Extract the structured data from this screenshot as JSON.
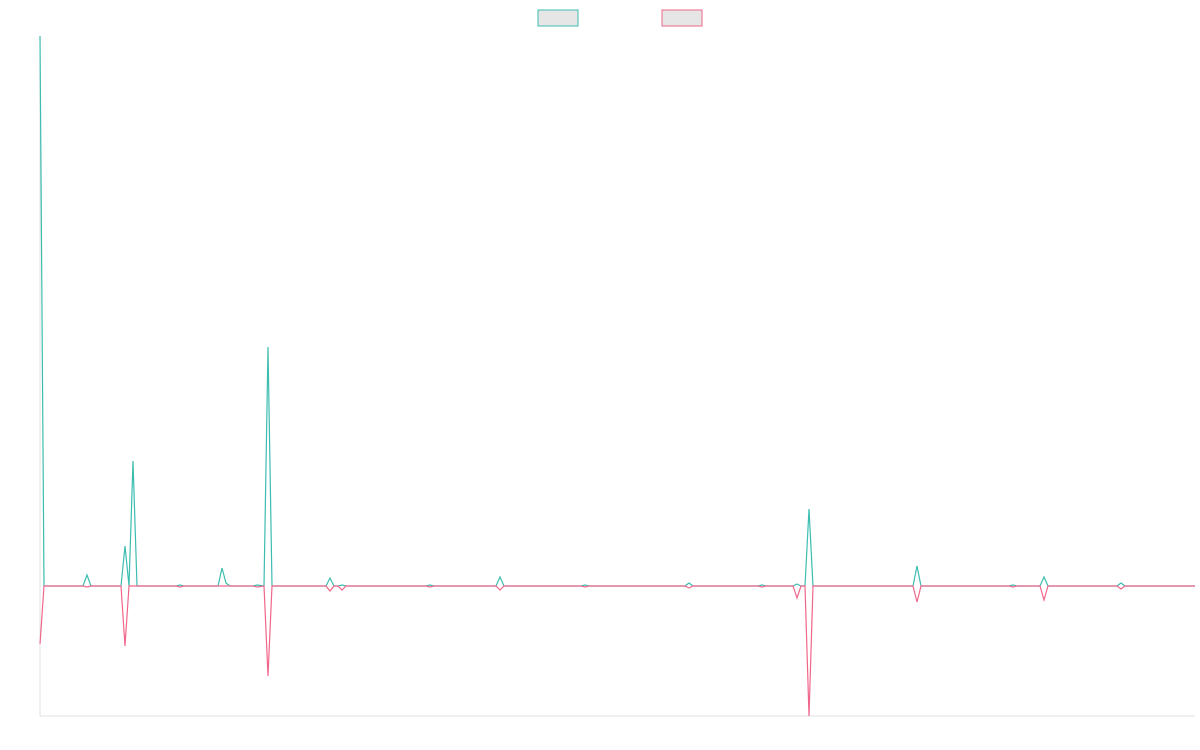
{
  "chart_data": {
    "type": "line",
    "legend": "top",
    "x": [
      0,
      4,
      43,
      47,
      51,
      81,
      85,
      89,
      93,
      97,
      136,
      140,
      144,
      178,
      182,
      186,
      190,
      213,
      217,
      224,
      228,
      232,
      286,
      290,
      294,
      298,
      302,
      306,
      386,
      390,
      394,
      456,
      460,
      464,
      541,
      545,
      549,
      645,
      649,
      653,
      718,
      722,
      726,
      753,
      757,
      761,
      765,
      769,
      773,
      873,
      877,
      881,
      969,
      973,
      977,
      1000,
      1004,
      1008,
      1077,
      1081,
      1085,
      1155
    ],
    "xlim": [
      0,
      1155
    ],
    "ylim": [
      -130,
      550
    ],
    "series": [
      {
        "color": "#3dbdb0",
        "values": [
          550,
          0,
          0,
          11,
          0,
          0,
          40,
          0,
          125,
          0,
          0,
          1,
          0,
          0,
          18,
          3,
          0,
          0,
          1,
          0,
          239,
          0,
          0,
          8,
          0,
          0,
          1,
          0,
          0,
          1,
          0,
          0,
          9,
          0,
          0,
          1,
          0,
          0,
          3,
          0,
          0,
          1,
          0,
          0,
          2,
          0,
          0,
          77,
          0,
          0,
          20,
          0,
          0,
          1,
          0,
          0,
          9,
          0,
          0,
          3,
          0,
          0
        ]
      },
      {
        "color": "#f0668a",
        "values": [
          -58,
          0,
          0,
          -1,
          0,
          0,
          -60,
          0,
          0,
          0,
          0,
          -1,
          0,
          0,
          0,
          0,
          0,
          0,
          -1,
          0,
          -90,
          0,
          0,
          -5,
          0,
          0,
          -4,
          0,
          0,
          -1,
          0,
          0,
          -4,
          0,
          0,
          -1,
          0,
          0,
          -2,
          0,
          0,
          -1,
          0,
          0,
          -12,
          0,
          0,
          -130,
          0,
          0,
          -16,
          0,
          0,
          -1,
          0,
          0,
          -14,
          0,
          0,
          -3,
          0,
          0
        ]
      }
    ]
  }
}
